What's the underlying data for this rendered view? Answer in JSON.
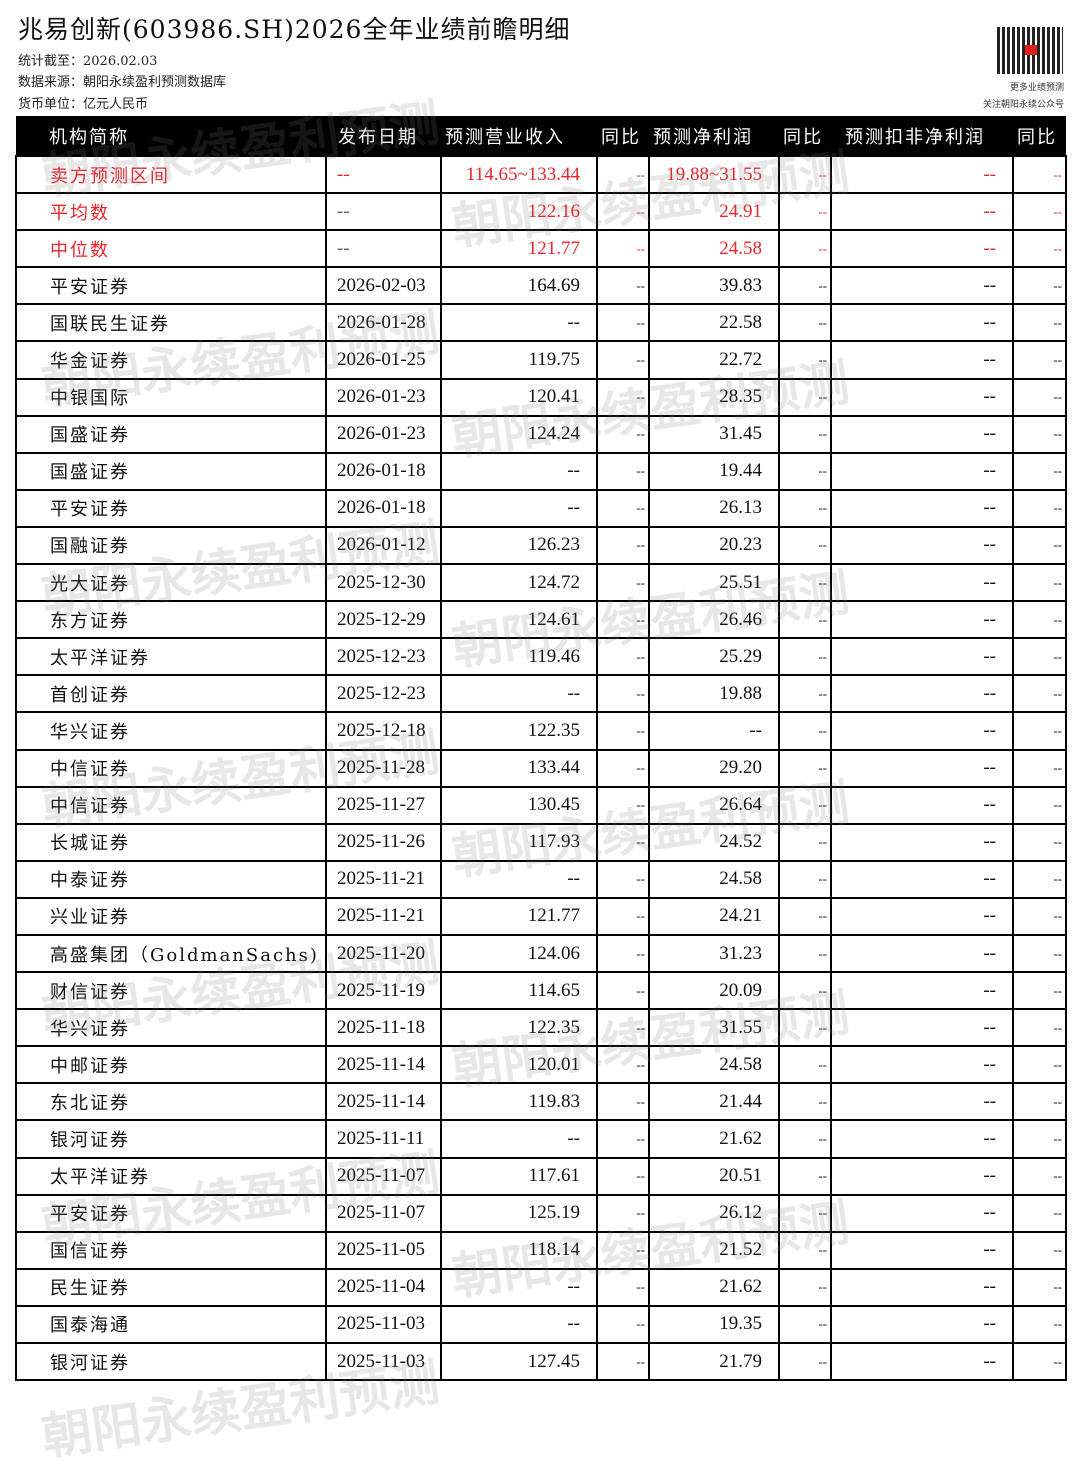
{
  "title": "兆易创新(603986.SH)2026全年业绩前瞻明细",
  "meta": {
    "as_of": "统计截至：2026.02.03",
    "source": "数据来源：朝阳永续盈利预测数据库",
    "currency": "货币单位：亿元人民币"
  },
  "qr": {
    "line1": "更多业绩预测",
    "line2": "关注朝阳永续公众号"
  },
  "watermark": "朝阳永续盈利预测",
  "headers": [
    "机构简称",
    "发布日期",
    "预测营业收入",
    "同比",
    "预测净利润",
    "同比",
    "预测扣非净利润",
    "同比"
  ],
  "summary_rows": [
    [
      "卖方预测区间",
      "--",
      "114.65~133.44",
      "--",
      "19.88~31.55",
      "--",
      "--",
      "--"
    ],
    [
      "平均数",
      "--",
      "122.16",
      "--",
      "24.91",
      "--",
      "--",
      "--"
    ],
    [
      "中位数",
      "--",
      "121.77",
      "--",
      "24.58",
      "--",
      "--",
      "--"
    ]
  ],
  "rows": [
    [
      "平安证券",
      "2026-02-03",
      "164.69",
      "--",
      "39.83",
      "--",
      "--",
      "--"
    ],
    [
      "国联民生证券",
      "2026-01-28",
      "--",
      "--",
      "22.58",
      "--",
      "--",
      "--"
    ],
    [
      "华金证券",
      "2026-01-25",
      "119.75",
      "--",
      "22.72",
      "--",
      "--",
      "--"
    ],
    [
      "中银国际",
      "2026-01-23",
      "120.41",
      "--",
      "28.35",
      "--",
      "--",
      "--"
    ],
    [
      "国盛证券",
      "2026-01-23",
      "124.24",
      "--",
      "31.45",
      "--",
      "--",
      "--"
    ],
    [
      "国盛证券",
      "2026-01-18",
      "--",
      "--",
      "19.44",
      "--",
      "--",
      "--"
    ],
    [
      "平安证券",
      "2026-01-18",
      "--",
      "--",
      "26.13",
      "--",
      "--",
      "--"
    ],
    [
      "国融证券",
      "2026-01-12",
      "126.23",
      "--",
      "20.23",
      "--",
      "--",
      "--"
    ],
    [
      "光大证券",
      "2025-12-30",
      "124.72",
      "--",
      "25.51",
      "--",
      "--",
      "--"
    ],
    [
      "东方证券",
      "2025-12-29",
      "124.61",
      "--",
      "26.46",
      "--",
      "--",
      "--"
    ],
    [
      "太平洋证券",
      "2025-12-23",
      "119.46",
      "--",
      "25.29",
      "--",
      "--",
      "--"
    ],
    [
      "首创证券",
      "2025-12-23",
      "--",
      "--",
      "19.88",
      "--",
      "--",
      "--"
    ],
    [
      "华兴证券",
      "2025-12-18",
      "122.35",
      "--",
      "--",
      "--",
      "--",
      "--"
    ],
    [
      "中信证券",
      "2025-11-28",
      "133.44",
      "--",
      "29.20",
      "--",
      "--",
      "--"
    ],
    [
      "中信证券",
      "2025-11-27",
      "130.45",
      "--",
      "26.64",
      "--",
      "--",
      "--"
    ],
    [
      "长城证券",
      "2025-11-26",
      "117.93",
      "--",
      "24.52",
      "--",
      "--",
      "--"
    ],
    [
      "中泰证券",
      "2025-11-21",
      "--",
      "--",
      "24.58",
      "--",
      "--",
      "--"
    ],
    [
      "兴业证券",
      "2025-11-21",
      "121.77",
      "--",
      "24.21",
      "--",
      "--",
      "--"
    ],
    [
      "高盛集团（GoldmanSachs)",
      "2025-11-20",
      "124.06",
      "--",
      "31.23",
      "--",
      "--",
      "--"
    ],
    [
      "财信证券",
      "2025-11-19",
      "114.65",
      "--",
      "20.09",
      "--",
      "--",
      "--"
    ],
    [
      "华兴证券",
      "2025-11-18",
      "122.35",
      "--",
      "31.55",
      "--",
      "--",
      "--"
    ],
    [
      "中邮证券",
      "2025-11-14",
      "120.01",
      "--",
      "24.58",
      "--",
      "--",
      "--"
    ],
    [
      "东北证券",
      "2025-11-14",
      "119.83",
      "--",
      "21.44",
      "--",
      "--",
      "--"
    ],
    [
      "银河证券",
      "2025-11-11",
      "--",
      "--",
      "21.62",
      "--",
      "--",
      "--"
    ],
    [
      "太平洋证券",
      "2025-11-07",
      "117.61",
      "--",
      "20.51",
      "--",
      "--",
      "--"
    ],
    [
      "平安证券",
      "2025-11-07",
      "125.19",
      "--",
      "26.12",
      "--",
      "--",
      "--"
    ],
    [
      "国信证券",
      "2025-11-05",
      "118.14",
      "--",
      "21.52",
      "--",
      "--",
      "--"
    ],
    [
      "民生证券",
      "2025-11-04",
      "--",
      "--",
      "21.62",
      "--",
      "--",
      "--"
    ],
    [
      "国泰海通",
      "2025-11-03",
      "--",
      "--",
      "19.35",
      "--",
      "--",
      "--"
    ],
    [
      "银河证券",
      "2025-11-03",
      "127.45",
      "--",
      "21.79",
      "--",
      "--",
      "--"
    ]
  ],
  "colors": {
    "accent_red": "#e8262b",
    "header_bg": "#000000"
  }
}
